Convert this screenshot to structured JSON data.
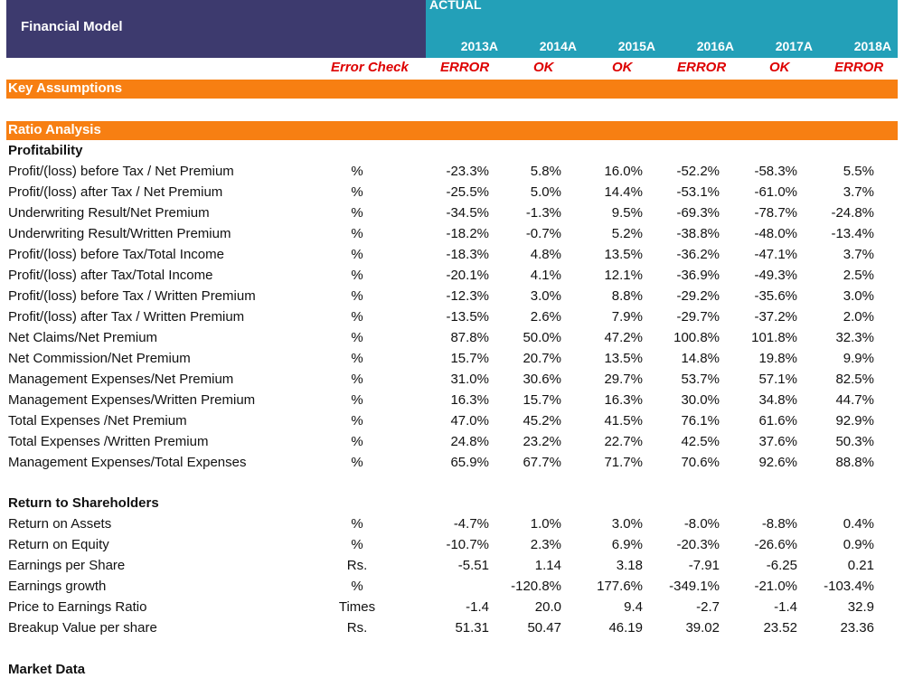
{
  "header": {
    "title": "Financial Model",
    "actual_label": "ACTUAL",
    "years": [
      "2013A",
      "2014A",
      "2015A",
      "2016A",
      "2017A",
      "2018A"
    ]
  },
  "error_check": {
    "label": "Error Check",
    "values": [
      "ERROR",
      "OK",
      "OK",
      "ERROR",
      "OK",
      "ERROR"
    ]
  },
  "key_assumptions": "Key Assumptions",
  "ratio_analysis": "Ratio Analysis",
  "profitability": {
    "title": "Profitability",
    "rows": [
      {
        "label": "Profit/(loss) before Tax / Net Premium",
        "unit": "%",
        "values": [
          "-23.3%",
          "5.8%",
          "16.0%",
          "-52.2%",
          "-58.3%",
          "5.5%"
        ]
      },
      {
        "label": "Profit/(loss) after Tax / Net Premium",
        "unit": "%",
        "values": [
          "-25.5%",
          "5.0%",
          "14.4%",
          "-53.1%",
          "-61.0%",
          "3.7%"
        ]
      },
      {
        "label": "Underwriting Result/Net Premium",
        "unit": "%",
        "values": [
          "-34.5%",
          "-1.3%",
          "9.5%",
          "-69.3%",
          "-78.7%",
          "-24.8%"
        ]
      },
      {
        "label": "Underwriting Result/Written Premium",
        "unit": "%",
        "values": [
          "-18.2%",
          "-0.7%",
          "5.2%",
          "-38.8%",
          "-48.0%",
          "-13.4%"
        ]
      },
      {
        "label": "Profit/(loss) before Tax/Total Income",
        "unit": "%",
        "values": [
          "-18.3%",
          "4.8%",
          "13.5%",
          "-36.2%",
          "-47.1%",
          "3.7%"
        ]
      },
      {
        "label": "Profit/(loss) after Tax/Total Income",
        "unit": "%",
        "values": [
          "-20.1%",
          "4.1%",
          "12.1%",
          "-36.9%",
          "-49.3%",
          "2.5%"
        ]
      },
      {
        "label": "Profit/(loss) before Tax / Written Premium",
        "unit": "%",
        "values": [
          "-12.3%",
          "3.0%",
          "8.8%",
          "-29.2%",
          "-35.6%",
          "3.0%"
        ]
      },
      {
        "label": "Profit/(loss) after Tax / Written Premium",
        "unit": "%",
        "values": [
          "-13.5%",
          "2.6%",
          "7.9%",
          "-29.7%",
          "-37.2%",
          "2.0%"
        ]
      },
      {
        "label": "Net Claims/Net Premium",
        "unit": "%",
        "values": [
          "87.8%",
          "50.0%",
          "47.2%",
          "100.8%",
          "101.8%",
          "32.3%"
        ]
      },
      {
        "label": "Net Commission/Net Premium",
        "unit": "%",
        "values": [
          "15.7%",
          "20.7%",
          "13.5%",
          "14.8%",
          "19.8%",
          "9.9%"
        ]
      },
      {
        "label": "Management Expenses/Net Premium",
        "unit": "%",
        "values": [
          "31.0%",
          "30.6%",
          "29.7%",
          "53.7%",
          "57.1%",
          "82.5%"
        ]
      },
      {
        "label": "Management Expenses/Written Premium",
        "unit": "%",
        "values": [
          "16.3%",
          "15.7%",
          "16.3%",
          "30.0%",
          "34.8%",
          "44.7%"
        ]
      },
      {
        "label": "Total Expenses /Net Premium",
        "unit": "%",
        "values": [
          "47.0%",
          "45.2%",
          "41.5%",
          "76.1%",
          "61.6%",
          "92.9%"
        ]
      },
      {
        "label": "Total Expenses /Written Premium",
        "unit": "%",
        "values": [
          "24.8%",
          "23.2%",
          "22.7%",
          "42.5%",
          "37.6%",
          "50.3%"
        ]
      },
      {
        "label": "Management Expenses/Total Expenses",
        "unit": "%",
        "values": [
          "65.9%",
          "67.7%",
          "71.7%",
          "70.6%",
          "92.6%",
          "88.8%"
        ]
      }
    ]
  },
  "returns": {
    "title": "Return to Shareholders",
    "rows": [
      {
        "label": "Return on Assets",
        "unit": "%",
        "values": [
          "-4.7%",
          "1.0%",
          "3.0%",
          "-8.0%",
          "-8.8%",
          "0.4%"
        ]
      },
      {
        "label": "Return on Equity",
        "unit": "%",
        "values": [
          "-10.7%",
          "2.3%",
          "6.9%",
          "-20.3%",
          "-26.6%",
          "0.9%"
        ]
      },
      {
        "label": "Earnings per Share",
        "unit": "Rs.",
        "values": [
          "-5.51",
          "1.14",
          "3.18",
          "-7.91",
          "-6.25",
          "0.21"
        ]
      },
      {
        "label": "Earnings growth",
        "unit": "%",
        "values": [
          "",
          "-120.8%",
          "177.6%",
          "-349.1%",
          "-21.0%",
          "-103.4%"
        ]
      },
      {
        "label": "Price to Earnings Ratio",
        "unit": "Times",
        "values": [
          "-1.4",
          "20.0",
          "9.4",
          "-2.7",
          "-1.4",
          "32.9"
        ]
      },
      {
        "label": "Breakup Value per share",
        "unit": "Rs.",
        "values": [
          "51.31",
          "50.47",
          "46.19",
          "39.02",
          "23.52",
          "23.36"
        ]
      }
    ]
  },
  "market_data": "Market Data"
}
